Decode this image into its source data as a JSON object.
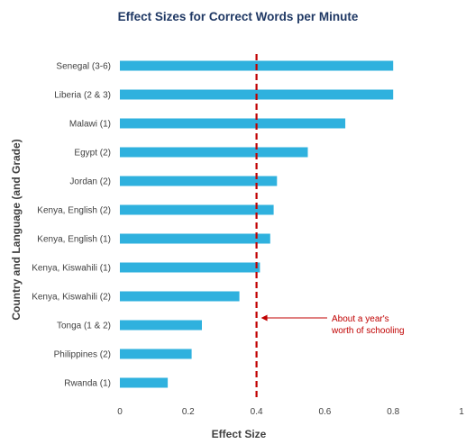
{
  "chart_data": {
    "type": "bar",
    "orientation": "horizontal",
    "title": "Effect Sizes for Correct Words per Minute",
    "xlabel": "Effect Size",
    "ylabel": "Country and Language (and Grade)",
    "xlim": [
      0,
      1
    ],
    "x_ticks": [
      "0",
      "0.2",
      "0.4",
      "0.6",
      "0.8",
      "1"
    ],
    "categories": [
      "Senegal (3-6)",
      "Liberia (2 & 3)",
      "Malawi (1)",
      "Egypt (2)",
      "Jordan (2)",
      "Kenya, English (2)",
      "Kenya, English (1)",
      "Kenya, Kiswahili (1)",
      "Kenya, Kiswahili (2)",
      "Tonga  (1 & 2)",
      "Philippines (2)",
      "Rwanda (1)"
    ],
    "values": [
      0.8,
      0.8,
      0.66,
      0.55,
      0.46,
      0.45,
      0.44,
      0.41,
      0.35,
      0.24,
      0.21,
      0.14
    ],
    "bar_color": "#2fb1de",
    "reference_line": {
      "value": 0.4,
      "color": "#c00000",
      "style": "dashed",
      "annotation": [
        "About a year's",
        "worth of schooling"
      ]
    },
    "grid": false,
    "legend": "none"
  }
}
